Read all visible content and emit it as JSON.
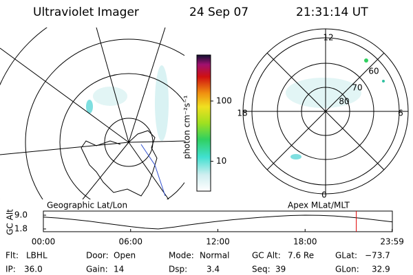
{
  "header": {
    "title": "Ultraviolet Imager",
    "date": "24 Sep 07",
    "time": "21:31:14 UT"
  },
  "colorbar": {
    "label": "photon cm⁻²s⁻¹",
    "log": true,
    "clim": [
      3.2,
      580
    ],
    "ticks": [
      10,
      100
    ]
  },
  "polar": {
    "labels": [
      "12",
      "18",
      "6",
      "0",
      "60",
      "70",
      "80"
    ]
  },
  "map_labels": {
    "left": "Geographic Lat/Lon",
    "right": "Apex MLat/MLT"
  },
  "altitude_plot": {
    "type": "line",
    "ylabel": "GC Alt",
    "color": "#000000",
    "x": [
      0,
      1,
      2,
      3,
      4,
      5,
      6,
      7,
      7.9,
      9,
      10,
      11,
      12,
      13,
      14,
      15,
      16,
      17,
      18,
      19,
      20,
      21,
      22,
      23,
      24
    ],
    "values": [
      8.0,
      7.5,
      6.8,
      6.0,
      5.0,
      4.0,
      3.0,
      2.2,
      1.8,
      2.8,
      3.9,
      4.9,
      5.8,
      6.6,
      7.3,
      7.9,
      8.4,
      8.8,
      9.0,
      8.9,
      8.6,
      8.0,
      7.3,
      6.4,
      5.5
    ],
    "xlim": [
      0,
      24
    ],
    "ylim": [
      1.8,
      9.0
    ],
    "yticks": [
      {
        "value": 9.0,
        "label": "9.0"
      },
      {
        "value": 1.8,
        "label": "1.8"
      }
    ],
    "xticks": [
      {
        "value": 0,
        "label": "00:00"
      },
      {
        "value": 6,
        "label": "06:00"
      },
      {
        "value": 12,
        "label": "12:00"
      },
      {
        "value": 18,
        "label": "18:00"
      },
      {
        "value": 23.983,
        "label": "23:59"
      }
    ],
    "marker": 21.52,
    "marker_color": "#e00000"
  },
  "footer": [
    {
      "label": "Flt:",
      "value": "LBHL"
    },
    {
      "label": "Door:",
      "value": "Open"
    },
    {
      "label": "Mode:",
      "value": "Normal"
    },
    {
      "label": "GC Alt:",
      "value": "7.6 Re"
    },
    {
      "label": "GLat:",
      "value": "−73.7"
    },
    {
      "label": "IP:",
      "value": "36.0"
    },
    {
      "label": "Gain:",
      "value": "14"
    },
    {
      "label": "Dsp:",
      "value": "3.4"
    },
    {
      "label": "Seq:",
      "value": "39"
    },
    {
      "label": "GLon:",
      "value": "32.9"
    }
  ]
}
